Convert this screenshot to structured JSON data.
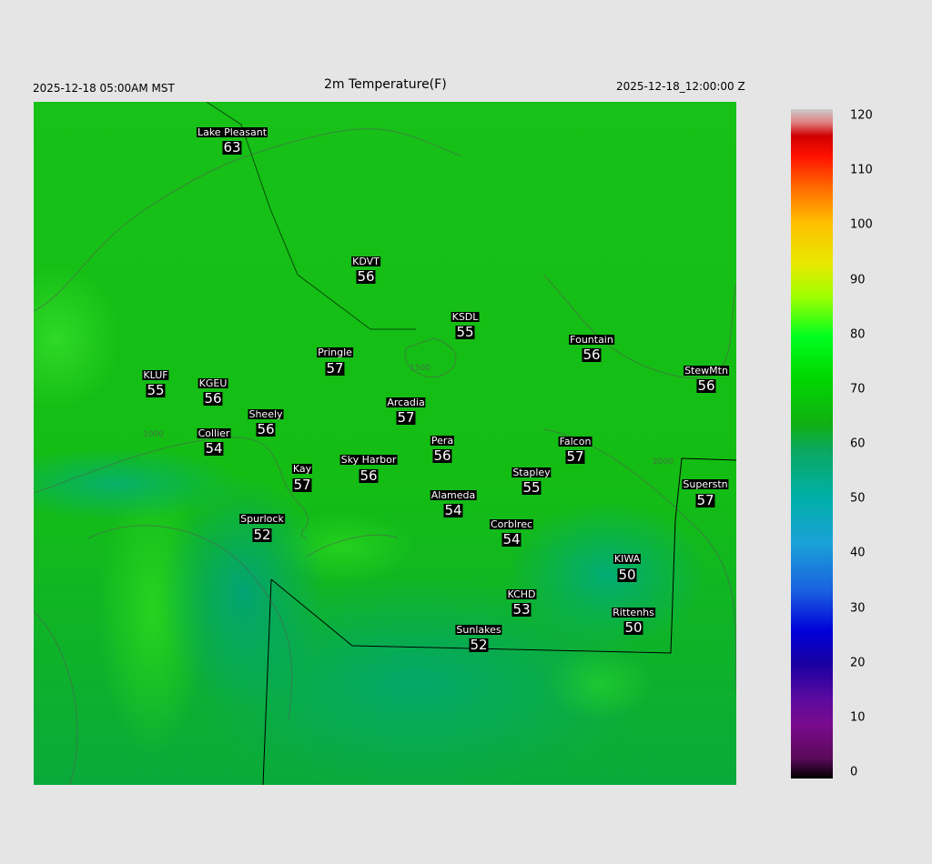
{
  "header": {
    "local_time": "2025-12-18 05:00AM MST",
    "title": "2m Temperature(F)",
    "valid_time": "2025-12-18_12:00:00 Z"
  },
  "colorbar": {
    "ticks": [
      "120",
      "110",
      "100",
      "90",
      "80",
      "70",
      "60",
      "50",
      "40",
      "30",
      "20",
      "10",
      "0"
    ],
    "range": [
      0,
      120
    ],
    "units": "F"
  },
  "contours": {
    "labels": [
      "1000",
      "1500",
      "2000"
    ]
  },
  "stations": [
    {
      "name": "Lake Pleasant",
      "value": "63"
    },
    {
      "name": "KDVT",
      "value": "56"
    },
    {
      "name": "KSDL",
      "value": "55"
    },
    {
      "name": "Fountain",
      "value": "56"
    },
    {
      "name": "StewMtn",
      "value": "56"
    },
    {
      "name": "Pringle",
      "value": "57"
    },
    {
      "name": "KLUF",
      "value": "55"
    },
    {
      "name": "KGEU",
      "value": "56"
    },
    {
      "name": "Arcadia",
      "value": "57"
    },
    {
      "name": "Sheely",
      "value": "56"
    },
    {
      "name": "Collier",
      "value": "54"
    },
    {
      "name": "Pera",
      "value": "56"
    },
    {
      "name": "Falcon",
      "value": "57"
    },
    {
      "name": "Sky Harbor",
      "value": "56"
    },
    {
      "name": "Kay",
      "value": "57"
    },
    {
      "name": "Stapley",
      "value": "55"
    },
    {
      "name": "Superstn",
      "value": "57"
    },
    {
      "name": "Alameda",
      "value": "54"
    },
    {
      "name": "Spurlock",
      "value": "52"
    },
    {
      "name": "Corblrec",
      "value": "54"
    },
    {
      "name": "KIWA",
      "value": "50"
    },
    {
      "name": "KCHD",
      "value": "53"
    },
    {
      "name": "Rittenhs",
      "value": "50"
    },
    {
      "name": "Sunlakes",
      "value": "52"
    }
  ]
}
